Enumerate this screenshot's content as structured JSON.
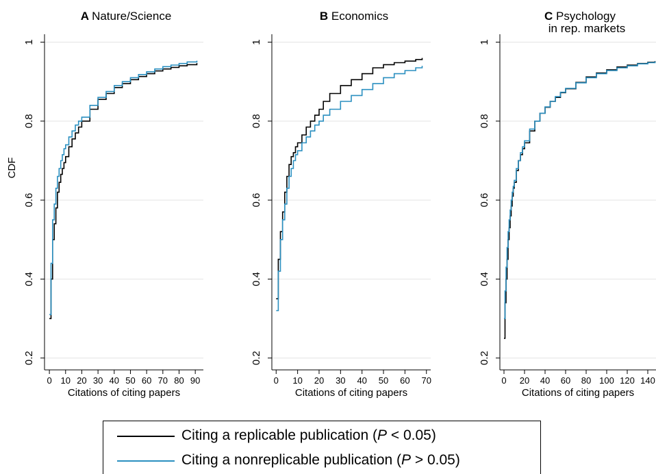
{
  "figure": {
    "legend": {
      "entries": [
        {
          "pre": "Citing a replicable publication (",
          "italic": "P",
          "post": " < 0.05)",
          "color": "#000000"
        },
        {
          "pre": "Citing a nonreplicable publication (",
          "italic": "P",
          "post": " > 0.05)",
          "color": "#2a8fc0"
        }
      ]
    }
  },
  "chart_data": [
    {
      "type": "line",
      "panel_letter": "A",
      "title": "Nature/Science",
      "xlabel": "Citations of citing papers",
      "ylabel": "CDF",
      "xlim": [
        -3,
        95
      ],
      "ylim": [
        0.17,
        1.02
      ],
      "xticks": [
        0,
        10,
        20,
        30,
        40,
        50,
        60,
        70,
        80,
        90
      ],
      "yticks": [
        0.2,
        0.4,
        0.6,
        0.8,
        1
      ],
      "ytick_labels": [
        "0.2",
        "0.4",
        "0.6",
        "0.8",
        "1"
      ],
      "grid": true,
      "series": [
        {
          "color": "#000000",
          "step": true,
          "points": [
            [
              0,
              0.3
            ],
            [
              1,
              0.4
            ],
            [
              2,
              0.5
            ],
            [
              3,
              0.54
            ],
            [
              4,
              0.58
            ],
            [
              5,
              0.62
            ],
            [
              6,
              0.645
            ],
            [
              7,
              0.665
            ],
            [
              8,
              0.68
            ],
            [
              9,
              0.695
            ],
            [
              10,
              0.71
            ],
            [
              12,
              0.735
            ],
            [
              14,
              0.755
            ],
            [
              16,
              0.77
            ],
            [
              18,
              0.785
            ],
            [
              20,
              0.8
            ],
            [
              25,
              0.83
            ],
            [
              30,
              0.855
            ],
            [
              35,
              0.87
            ],
            [
              40,
              0.885
            ],
            [
              45,
              0.895
            ],
            [
              50,
              0.905
            ],
            [
              55,
              0.913
            ],
            [
              60,
              0.92
            ],
            [
              65,
              0.927
            ],
            [
              70,
              0.932
            ],
            [
              75,
              0.936
            ],
            [
              80,
              0.94
            ],
            [
              85,
              0.943
            ],
            [
              91,
              0.947
            ]
          ]
        },
        {
          "color": "#2a8fc0",
          "step": true,
          "points": [
            [
              0,
              0.31
            ],
            [
              1,
              0.44
            ],
            [
              2,
              0.55
            ],
            [
              3,
              0.59
            ],
            [
              4,
              0.63
            ],
            [
              5,
              0.66
            ],
            [
              6,
              0.68
            ],
            [
              7,
              0.7
            ],
            [
              8,
              0.715
            ],
            [
              9,
              0.73
            ],
            [
              10,
              0.74
            ],
            [
              12,
              0.76
            ],
            [
              14,
              0.775
            ],
            [
              16,
              0.79
            ],
            [
              18,
              0.8
            ],
            [
              20,
              0.81
            ],
            [
              25,
              0.84
            ],
            [
              30,
              0.86
            ],
            [
              35,
              0.875
            ],
            [
              40,
              0.89
            ],
            [
              45,
              0.9
            ],
            [
              50,
              0.91
            ],
            [
              55,
              0.918
            ],
            [
              60,
              0.925
            ],
            [
              65,
              0.932
            ],
            [
              70,
              0.938
            ],
            [
              75,
              0.942
            ],
            [
              80,
              0.946
            ],
            [
              85,
              0.95
            ],
            [
              91,
              0.953
            ]
          ]
        }
      ]
    },
    {
      "type": "line",
      "panel_letter": "B",
      "title": "Economics",
      "xlabel": "Citations of citing papers",
      "ylabel": "",
      "xlim": [
        -2,
        72
      ],
      "ylim": [
        0.17,
        1.02
      ],
      "xticks": [
        0,
        10,
        20,
        30,
        40,
        50,
        60,
        70
      ],
      "yticks": [
        0.2,
        0.4,
        0.6,
        0.8,
        1
      ],
      "ytick_labels": [
        "0.2",
        "0.4",
        "0.6",
        "0.8",
        "1"
      ],
      "grid": true,
      "series": [
        {
          "color": "#000000",
          "step": true,
          "points": [
            [
              0,
              0.35
            ],
            [
              1,
              0.45
            ],
            [
              2,
              0.52
            ],
            [
              3,
              0.57
            ],
            [
              4,
              0.62
            ],
            [
              5,
              0.66
            ],
            [
              6,
              0.69
            ],
            [
              7,
              0.71
            ],
            [
              8,
              0.72
            ],
            [
              9,
              0.735
            ],
            [
              10,
              0.745
            ],
            [
              12,
              0.765
            ],
            [
              14,
              0.785
            ],
            [
              16,
              0.8
            ],
            [
              18,
              0.815
            ],
            [
              20,
              0.83
            ],
            [
              22,
              0.85
            ],
            [
              25,
              0.87
            ],
            [
              30,
              0.89
            ],
            [
              35,
              0.905
            ],
            [
              40,
              0.92
            ],
            [
              45,
              0.935
            ],
            [
              50,
              0.943
            ],
            [
              55,
              0.948
            ],
            [
              60,
              0.952
            ],
            [
              65,
              0.956
            ],
            [
              68,
              0.96
            ]
          ]
        },
        {
          "color": "#2a8fc0",
          "step": true,
          "points": [
            [
              0,
              0.32
            ],
            [
              1,
              0.42
            ],
            [
              2,
              0.5
            ],
            [
              3,
              0.55
            ],
            [
              4,
              0.59
            ],
            [
              5,
              0.63
            ],
            [
              6,
              0.66
            ],
            [
              7,
              0.68
            ],
            [
              8,
              0.7
            ],
            [
              9,
              0.715
            ],
            [
              10,
              0.725
            ],
            [
              12,
              0.745
            ],
            [
              14,
              0.76
            ],
            [
              16,
              0.775
            ],
            [
              18,
              0.79
            ],
            [
              20,
              0.8
            ],
            [
              22,
              0.815
            ],
            [
              25,
              0.83
            ],
            [
              30,
              0.85
            ],
            [
              35,
              0.865
            ],
            [
              40,
              0.88
            ],
            [
              45,
              0.895
            ],
            [
              50,
              0.91
            ],
            [
              55,
              0.92
            ],
            [
              60,
              0.928
            ],
            [
              65,
              0.935
            ],
            [
              68,
              0.94
            ]
          ]
        }
      ]
    },
    {
      "type": "line",
      "panel_letter": "C",
      "title": "Psychology\nin rep. markets",
      "xlabel": "Citations of citing papers",
      "ylabel": "",
      "xlim": [
        -4,
        148
      ],
      "ylim": [
        0.17,
        1.02
      ],
      "xticks": [
        0,
        20,
        40,
        60,
        80,
        100,
        120,
        140
      ],
      "yticks": [
        0.2,
        0.4,
        0.6,
        0.8,
        1
      ],
      "ytick_labels": [
        "0.2",
        "0.4",
        "0.6",
        "0.8",
        "1"
      ],
      "grid": true,
      "series": [
        {
          "color": "#000000",
          "step": true,
          "points": [
            [
              0,
              0.25
            ],
            [
              1,
              0.34
            ],
            [
              2,
              0.4
            ],
            [
              3,
              0.45
            ],
            [
              4,
              0.5
            ],
            [
              5,
              0.53
            ],
            [
              6,
              0.56
            ],
            [
              7,
              0.585
            ],
            [
              8,
              0.61
            ],
            [
              9,
              0.63
            ],
            [
              10,
              0.645
            ],
            [
              12,
              0.675
            ],
            [
              14,
              0.7
            ],
            [
              16,
              0.715
            ],
            [
              18,
              0.73
            ],
            [
              20,
              0.745
            ],
            [
              25,
              0.775
            ],
            [
              30,
              0.8
            ],
            [
              35,
              0.82
            ],
            [
              40,
              0.835
            ],
            [
              45,
              0.85
            ],
            [
              50,
              0.86
            ],
            [
              55,
              0.872
            ],
            [
              60,
              0.882
            ],
            [
              70,
              0.898
            ],
            [
              80,
              0.912
            ],
            [
              90,
              0.922
            ],
            [
              100,
              0.93
            ],
            [
              110,
              0.937
            ],
            [
              120,
              0.942
            ],
            [
              130,
              0.946
            ],
            [
              140,
              0.949
            ],
            [
              147,
              0.952
            ]
          ]
        },
        {
          "color": "#2a8fc0",
          "step": true,
          "points": [
            [
              0,
              0.3
            ],
            [
              1,
              0.37
            ],
            [
              2,
              0.43
            ],
            [
              3,
              0.48
            ],
            [
              4,
              0.52
            ],
            [
              5,
              0.55
            ],
            [
              6,
              0.575
            ],
            [
              7,
              0.6
            ],
            [
              8,
              0.62
            ],
            [
              9,
              0.635
            ],
            [
              10,
              0.65
            ],
            [
              12,
              0.68
            ],
            [
              14,
              0.7
            ],
            [
              16,
              0.72
            ],
            [
              18,
              0.735
            ],
            [
              20,
              0.75
            ],
            [
              25,
              0.78
            ],
            [
              30,
              0.8
            ],
            [
              35,
              0.82
            ],
            [
              40,
              0.836
            ],
            [
              45,
              0.85
            ],
            [
              50,
              0.862
            ],
            [
              55,
              0.873
            ],
            [
              60,
              0.883
            ],
            [
              70,
              0.897
            ],
            [
              80,
              0.91
            ],
            [
              90,
              0.92
            ],
            [
              100,
              0.928
            ],
            [
              110,
              0.935
            ],
            [
              120,
              0.94
            ],
            [
              130,
              0.945
            ],
            [
              140,
              0.948
            ],
            [
              147,
              0.951
            ]
          ]
        }
      ]
    }
  ]
}
